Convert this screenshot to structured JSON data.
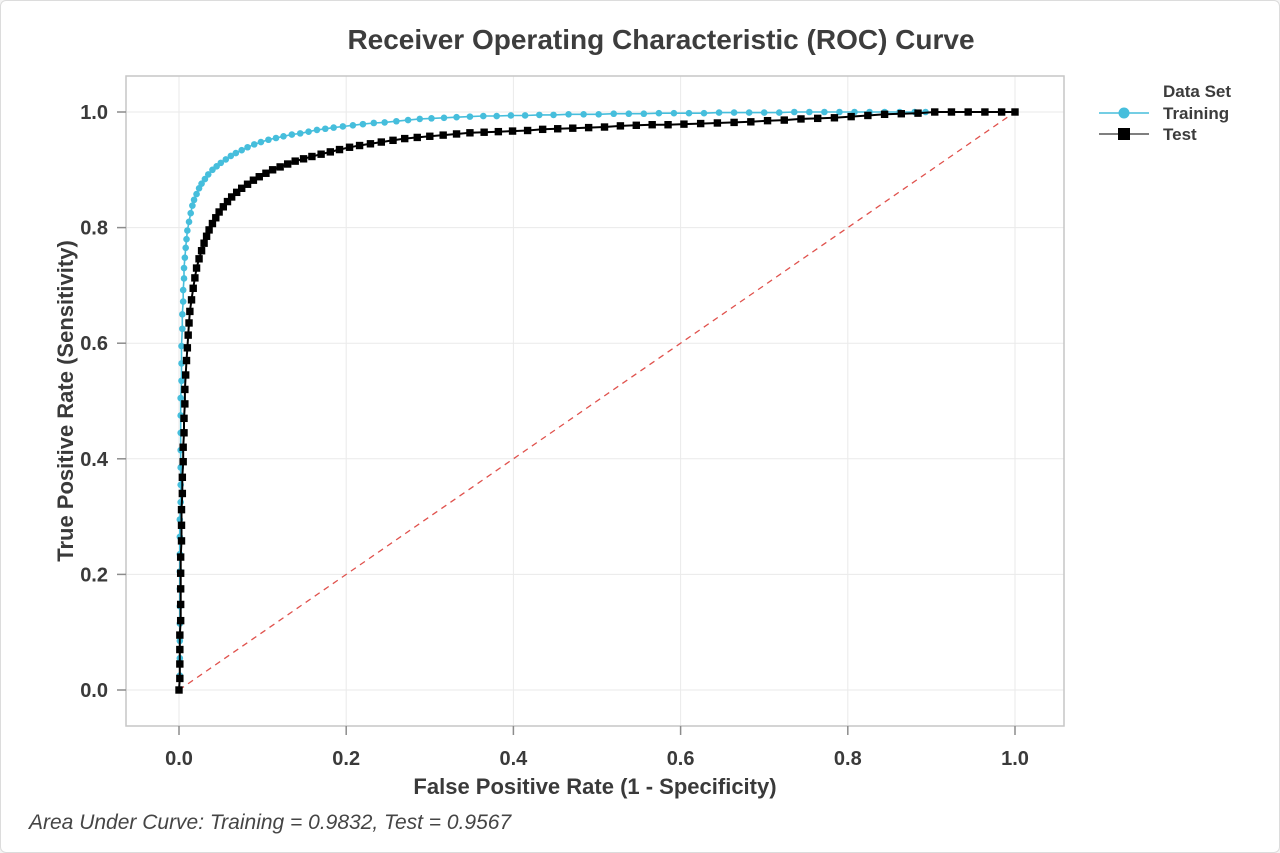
{
  "title": "Receiver Operating Characteristic (ROC) Curve",
  "footer_note": "Area Under Curve: Training = 0.9832, Test = 0.9567",
  "legend": {
    "title": "Data Set",
    "items": [
      {
        "label": "Training",
        "marker": "circle-icon",
        "color": "#46bedc"
      },
      {
        "label": "Test",
        "marker": "square-icon",
        "color": "#000000"
      }
    ]
  },
  "chart_data": {
    "type": "line",
    "title": "Receiver Operating Characteristic (ROC) Curve",
    "xlabel": "False Positive Rate (1 - Specificity)",
    "ylabel": "True Positive Rate (Sensitivity)",
    "xlim": [
      0,
      1
    ],
    "ylim": [
      0,
      1
    ],
    "grid": true,
    "legend_position": "right",
    "xticks": [
      0.0,
      0.2,
      0.4,
      0.6,
      0.8,
      1.0
    ],
    "xtick_labels": [
      "0.0",
      "0.2",
      "0.4",
      "0.6",
      "0.8",
      "1.0"
    ],
    "yticks": [
      0.0,
      0.2,
      0.4,
      0.6,
      0.8,
      1.0
    ],
    "ytick_labels": [
      "0.0",
      "0.2",
      "0.4",
      "0.6",
      "0.8",
      "1.0"
    ],
    "reference_line": {
      "type": "diagonal-chance-line",
      "style": "dashed",
      "color": "#e0524d",
      "from": [
        0,
        0
      ],
      "to": [
        1,
        1
      ]
    },
    "annotation": "Area Under Curve: Training = 0.9832, Test = 0.9567",
    "series": [
      {
        "name": "Training",
        "color": "#46bedc",
        "marker": "circle",
        "auc": 0.9832,
        "points": [
          [
            0.0,
            0.0
          ],
          [
            0.001,
            0.025
          ],
          [
            0.001,
            0.055
          ],
          [
            0.001,
            0.085
          ],
          [
            0.001,
            0.115
          ],
          [
            0.001,
            0.145
          ],
          [
            0.001,
            0.175
          ],
          [
            0.001,
            0.205
          ],
          [
            0.001,
            0.235
          ],
          [
            0.001,
            0.265
          ],
          [
            0.001,
            0.295
          ],
          [
            0.002,
            0.325
          ],
          [
            0.002,
            0.355
          ],
          [
            0.002,
            0.385
          ],
          [
            0.002,
            0.415
          ],
          [
            0.002,
            0.445
          ],
          [
            0.002,
            0.475
          ],
          [
            0.002,
            0.505
          ],
          [
            0.003,
            0.535
          ],
          [
            0.003,
            0.565
          ],
          [
            0.003,
            0.595
          ],
          [
            0.004,
            0.625
          ],
          [
            0.004,
            0.65
          ],
          [
            0.005,
            0.672
          ],
          [
            0.005,
            0.692
          ],
          [
            0.006,
            0.712
          ],
          [
            0.006,
            0.73
          ],
          [
            0.007,
            0.748
          ],
          [
            0.008,
            0.765
          ],
          [
            0.009,
            0.78
          ],
          [
            0.01,
            0.795
          ],
          [
            0.012,
            0.81
          ],
          [
            0.014,
            0.825
          ],
          [
            0.016,
            0.838
          ],
          [
            0.018,
            0.848
          ],
          [
            0.021,
            0.858
          ],
          [
            0.024,
            0.868
          ],
          [
            0.027,
            0.876
          ],
          [
            0.031,
            0.884
          ],
          [
            0.035,
            0.892
          ],
          [
            0.04,
            0.9
          ],
          [
            0.045,
            0.906
          ],
          [
            0.05,
            0.912
          ],
          [
            0.056,
            0.918
          ],
          [
            0.062,
            0.924
          ],
          [
            0.068,
            0.929
          ],
          [
            0.075,
            0.934
          ],
          [
            0.082,
            0.939
          ],
          [
            0.09,
            0.944
          ],
          [
            0.098,
            0.948
          ],
          [
            0.107,
            0.952
          ],
          [
            0.116,
            0.955
          ],
          [
            0.125,
            0.958
          ],
          [
            0.135,
            0.961
          ],
          [
            0.145,
            0.963
          ],
          [
            0.155,
            0.966
          ],
          [
            0.165,
            0.969
          ],
          [
            0.175,
            0.971
          ],
          [
            0.185,
            0.973
          ],
          [
            0.196,
            0.975
          ],
          [
            0.208,
            0.977
          ],
          [
            0.22,
            0.979
          ],
          [
            0.233,
            0.981
          ],
          [
            0.246,
            0.982
          ],
          [
            0.26,
            0.984
          ],
          [
            0.274,
            0.986
          ],
          [
            0.288,
            0.988
          ],
          [
            0.302,
            0.989
          ],
          [
            0.317,
            0.99
          ],
          [
            0.332,
            0.991
          ],
          [
            0.348,
            0.992
          ],
          [
            0.364,
            0.993
          ],
          [
            0.38,
            0.993
          ],
          [
            0.397,
            0.994
          ],
          [
            0.414,
            0.994
          ],
          [
            0.431,
            0.995
          ],
          [
            0.448,
            0.995
          ],
          [
            0.466,
            0.996
          ],
          [
            0.484,
            0.996
          ],
          [
            0.502,
            0.996
          ],
          [
            0.52,
            0.997
          ],
          [
            0.538,
            0.997
          ],
          [
            0.556,
            0.997
          ],
          [
            0.574,
            0.998
          ],
          [
            0.592,
            0.998
          ],
          [
            0.61,
            0.998
          ],
          [
            0.628,
            0.998
          ],
          [
            0.646,
            0.999
          ],
          [
            0.664,
            0.999
          ],
          [
            0.682,
            0.999
          ],
          [
            0.7,
            0.999
          ],
          [
            0.718,
            0.999
          ],
          [
            0.736,
            1.0
          ],
          [
            0.754,
            1.0
          ],
          [
            0.772,
            1.0
          ],
          [
            0.79,
            1.0
          ],
          [
            0.808,
            1.0
          ],
          [
            0.826,
            1.0
          ],
          [
            0.844,
            1.0
          ],
          [
            0.862,
            1.0
          ],
          [
            0.88,
            1.0
          ],
          [
            0.893,
            1.0
          ]
        ]
      },
      {
        "name": "Test",
        "color": "#000000",
        "marker": "square",
        "auc": 0.9567,
        "points": [
          [
            0.0,
            0.0
          ],
          [
            0.001,
            0.02
          ],
          [
            0.001,
            0.045
          ],
          [
            0.001,
            0.07
          ],
          [
            0.001,
            0.095
          ],
          [
            0.002,
            0.12
          ],
          [
            0.002,
            0.148
          ],
          [
            0.002,
            0.175
          ],
          [
            0.002,
            0.202
          ],
          [
            0.002,
            0.23
          ],
          [
            0.003,
            0.258
          ],
          [
            0.003,
            0.285
          ],
          [
            0.003,
            0.312
          ],
          [
            0.004,
            0.34
          ],
          [
            0.004,
            0.368
          ],
          [
            0.005,
            0.395
          ],
          [
            0.005,
            0.42
          ],
          [
            0.006,
            0.445
          ],
          [
            0.006,
            0.47
          ],
          [
            0.007,
            0.495
          ],
          [
            0.007,
            0.52
          ],
          [
            0.008,
            0.545
          ],
          [
            0.009,
            0.57
          ],
          [
            0.01,
            0.592
          ],
          [
            0.011,
            0.614
          ],
          [
            0.012,
            0.635
          ],
          [
            0.013,
            0.655
          ],
          [
            0.015,
            0.675
          ],
          [
            0.017,
            0.695
          ],
          [
            0.019,
            0.713
          ],
          [
            0.021,
            0.73
          ],
          [
            0.024,
            0.746
          ],
          [
            0.027,
            0.76
          ],
          [
            0.03,
            0.773
          ],
          [
            0.033,
            0.785
          ],
          [
            0.036,
            0.796
          ],
          [
            0.04,
            0.807
          ],
          [
            0.044,
            0.817
          ],
          [
            0.048,
            0.827
          ],
          [
            0.053,
            0.836
          ],
          [
            0.058,
            0.845
          ],
          [
            0.063,
            0.853
          ],
          [
            0.069,
            0.861
          ],
          [
            0.075,
            0.868
          ],
          [
            0.082,
            0.875
          ],
          [
            0.089,
            0.882
          ],
          [
            0.096,
            0.888
          ],
          [
            0.104,
            0.894
          ],
          [
            0.112,
            0.9
          ],
          [
            0.121,
            0.905
          ],
          [
            0.13,
            0.91
          ],
          [
            0.139,
            0.915
          ],
          [
            0.149,
            0.919
          ],
          [
            0.159,
            0.923
          ],
          [
            0.17,
            0.927
          ],
          [
            0.181,
            0.931
          ],
          [
            0.192,
            0.935
          ],
          [
            0.204,
            0.939
          ],
          [
            0.216,
            0.942
          ],
          [
            0.229,
            0.945
          ],
          [
            0.242,
            0.948
          ],
          [
            0.256,
            0.951
          ],
          [
            0.27,
            0.954
          ],
          [
            0.285,
            0.956
          ],
          [
            0.3,
            0.958
          ],
          [
            0.316,
            0.96
          ],
          [
            0.332,
            0.962
          ],
          [
            0.348,
            0.964
          ],
          [
            0.365,
            0.965
          ],
          [
            0.382,
            0.966
          ],
          [
            0.399,
            0.967
          ],
          [
            0.417,
            0.968
          ],
          [
            0.435,
            0.97
          ],
          [
            0.453,
            0.971
          ],
          [
            0.471,
            0.972
          ],
          [
            0.49,
            0.973
          ],
          [
            0.509,
            0.974
          ],
          [
            0.528,
            0.976
          ],
          [
            0.547,
            0.977
          ],
          [
            0.566,
            0.978
          ],
          [
            0.585,
            0.978
          ],
          [
            0.604,
            0.979
          ],
          [
            0.624,
            0.98
          ],
          [
            0.644,
            0.981
          ],
          [
            0.664,
            0.982
          ],
          [
            0.684,
            0.983
          ],
          [
            0.704,
            0.985
          ],
          [
            0.724,
            0.986
          ],
          [
            0.744,
            0.988
          ],
          [
            0.764,
            0.989
          ],
          [
            0.784,
            0.99
          ],
          [
            0.804,
            0.992
          ],
          [
            0.824,
            0.994
          ],
          [
            0.844,
            0.996
          ],
          [
            0.864,
            0.997
          ],
          [
            0.884,
            0.998
          ],
          [
            0.904,
            1.0
          ],
          [
            0.924,
            1.0
          ],
          [
            0.944,
            1.0
          ],
          [
            0.964,
            1.0
          ],
          [
            0.984,
            1.0
          ],
          [
            1.0,
            1.0
          ]
        ]
      }
    ]
  }
}
